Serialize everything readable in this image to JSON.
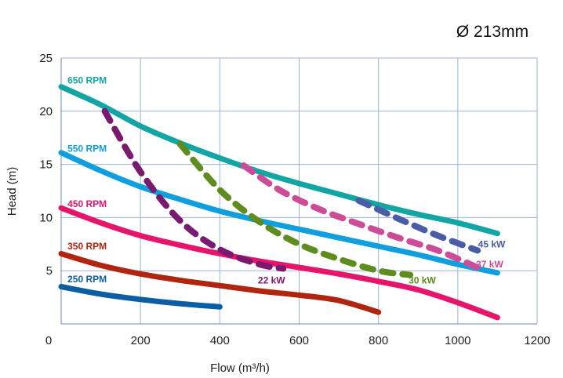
{
  "chart_data": {
    "type": "line",
    "annotation": "Ø 213mm",
    "xlabel": "Flow (m³/h)",
    "ylabel": "Head (m)",
    "xlim": [
      0,
      1200
    ],
    "ylim": [
      0,
      25
    ],
    "x_ticks": [
      0,
      200,
      400,
      600,
      800,
      1000,
      1200
    ],
    "y_ticks": [
      5,
      10,
      15,
      20,
      25
    ],
    "grid": true,
    "series": [
      {
        "name": "650 RPM",
        "style": "solid",
        "color": "#13a4a4",
        "label_pos": [
          20,
          22.9
        ],
        "points": [
          [
            0,
            22.3
          ],
          [
            100,
            20.6
          ],
          [
            200,
            18.6
          ],
          [
            300,
            17.0
          ],
          [
            400,
            15.6
          ],
          [
            500,
            14.3
          ],
          [
            600,
            13.2
          ],
          [
            700,
            12.2
          ],
          [
            800,
            11.2
          ],
          [
            900,
            10.3
          ],
          [
            1000,
            9.5
          ],
          [
            1100,
            8.5
          ]
        ]
      },
      {
        "name": "550 RPM",
        "style": "solid",
        "color": "#0f9fde",
        "label_pos": [
          20,
          16.5
        ],
        "points": [
          [
            0,
            16.1
          ],
          [
            100,
            14.4
          ],
          [
            200,
            12.9
          ],
          [
            300,
            11.7
          ],
          [
            400,
            10.6
          ],
          [
            500,
            9.7
          ],
          [
            600,
            8.9
          ],
          [
            700,
            8.1
          ],
          [
            800,
            7.3
          ],
          [
            900,
            6.5
          ],
          [
            1000,
            5.6
          ],
          [
            1100,
            4.8
          ]
        ]
      },
      {
        "name": "450 RPM",
        "style": "solid",
        "color": "#e5156b",
        "label_pos": [
          20,
          11.3
        ],
        "points": [
          [
            0,
            10.9
          ],
          [
            100,
            9.5
          ],
          [
            200,
            8.3
          ],
          [
            300,
            7.4
          ],
          [
            400,
            6.6
          ],
          [
            500,
            5.9
          ],
          [
            600,
            5.3
          ],
          [
            700,
            4.7
          ],
          [
            800,
            4.0
          ],
          [
            900,
            3.2
          ],
          [
            1000,
            2.0
          ],
          [
            1100,
            0.6
          ]
        ]
      },
      {
        "name": "350 RPM",
        "style": "solid",
        "color": "#b02510",
        "label_pos": [
          20,
          7.3
        ],
        "points": [
          [
            0,
            6.6
          ],
          [
            100,
            5.5
          ],
          [
            200,
            4.7
          ],
          [
            300,
            4.1
          ],
          [
            400,
            3.6
          ],
          [
            500,
            3.1
          ],
          [
            600,
            2.7
          ],
          [
            700,
            2.2
          ],
          [
            800,
            1.1
          ]
        ]
      },
      {
        "name": "250 RPM",
        "style": "solid",
        "color": "#0b5ea4",
        "label_pos": [
          20,
          4.2
        ],
        "points": [
          [
            0,
            3.5
          ],
          [
            100,
            2.8
          ],
          [
            200,
            2.3
          ],
          [
            300,
            1.9
          ],
          [
            400,
            1.6
          ]
        ]
      },
      {
        "name": "22 kW",
        "style": "dashed",
        "color": "#7a1a6e",
        "label_pos": [
          500,
          4.1
        ],
        "points": [
          [
            110,
            20.0
          ],
          [
            200,
            14.3
          ],
          [
            300,
            9.7
          ],
          [
            400,
            7.0
          ],
          [
            500,
            5.6
          ],
          [
            560,
            5.2
          ]
        ]
      },
      {
        "name": "30 kW",
        "style": "dashed",
        "color": "#5e8c1e",
        "label_pos": [
          880,
          4.1
        ],
        "points": [
          [
            300,
            16.9
          ],
          [
            400,
            12.6
          ],
          [
            500,
            9.6
          ],
          [
            600,
            7.5
          ],
          [
            700,
            6.1
          ],
          [
            800,
            5.0
          ],
          [
            880,
            4.6
          ]
        ]
      },
      {
        "name": "37 kW",
        "style": "dashed",
        "color": "#cd4c98",
        "label_pos": [
          1050,
          5.6
        ],
        "points": [
          [
            460,
            14.9
          ],
          [
            550,
            12.6
          ],
          [
            650,
            10.8
          ],
          [
            750,
            9.4
          ],
          [
            850,
            8.1
          ],
          [
            950,
            6.9
          ],
          [
            1050,
            5.3
          ]
        ]
      },
      {
        "name": "45 kW",
        "style": "dashed",
        "color": "#4a5ca6",
        "label_pos": [
          1055,
          7.5
        ],
        "points": [
          [
            750,
            11.6
          ],
          [
            850,
            9.9
          ],
          [
            950,
            8.3
          ],
          [
            1050,
            6.9
          ]
        ]
      }
    ]
  }
}
